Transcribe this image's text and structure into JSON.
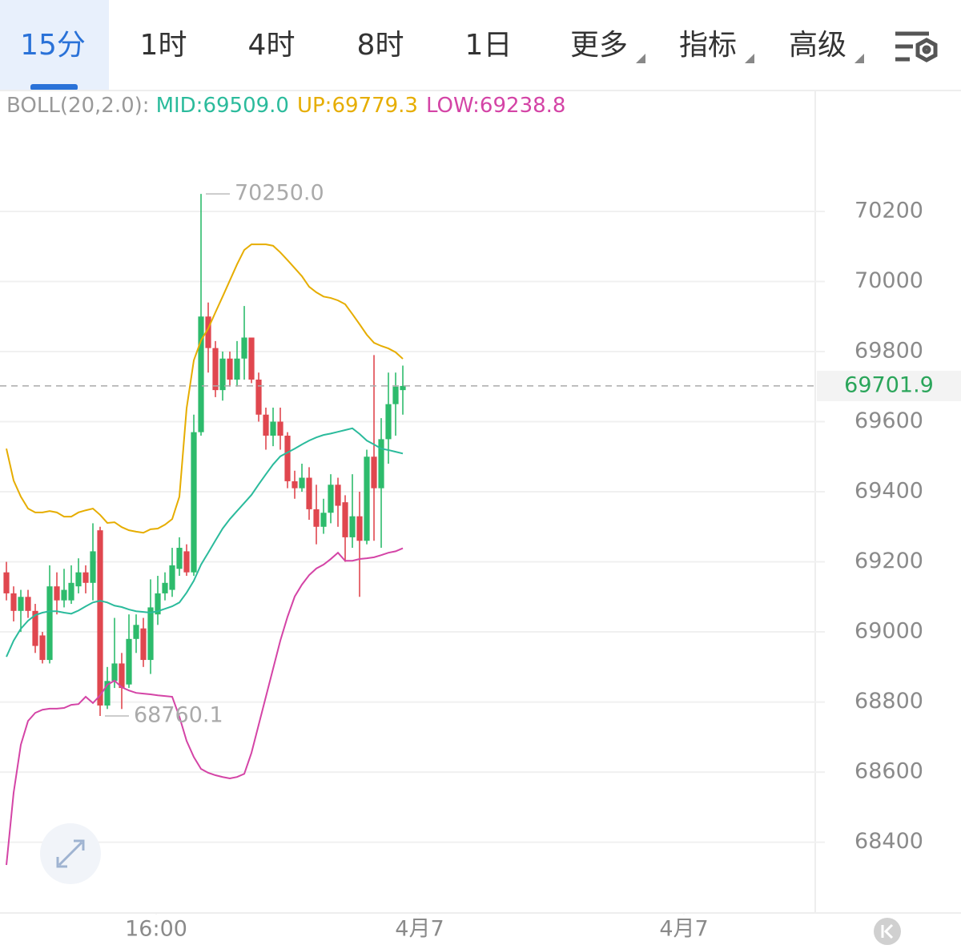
{
  "ui": {
    "tabs": [
      "15分",
      "1时",
      "4时",
      "8时",
      "1日",
      "更多",
      "指标",
      "高级"
    ]
  },
  "chart_data": {
    "type": "candlestick",
    "indicator": "BOLL(20,2.0):",
    "x": [
      0,
      1,
      2,
      3,
      4,
      5,
      6,
      7,
      8,
      9,
      10,
      11,
      12,
      13,
      14,
      15,
      16,
      17,
      18,
      19,
      20,
      21,
      22,
      23,
      24,
      25,
      26,
      27,
      28,
      29,
      30,
      31,
      32,
      33,
      34,
      35,
      36,
      37,
      38,
      39,
      40,
      41,
      42,
      43,
      44,
      45,
      46,
      47,
      48,
      49,
      50,
      51,
      52,
      53,
      54,
      55
    ],
    "open": [
      69170,
      69110,
      69060,
      69100,
      69060,
      68990,
      68920,
      69130,
      69090,
      69090,
      69130,
      69170,
      69140,
      69290,
      68790,
      68860,
      68910,
      68850,
      68980,
      69010,
      68920,
      69050,
      69110,
      69120,
      69180,
      69230,
      69170,
      69570,
      69900,
      69810,
      69690,
      69780,
      69720,
      69780,
      69840,
      69720,
      69620,
      69560,
      69600,
      69560,
      69430,
      69410,
      69440,
      69350,
      69300,
      69340,
      69420,
      69370,
      69270,
      69330,
      69260,
      69500,
      69410,
      69550,
      69650,
      69690
    ],
    "high": [
      69200,
      69130,
      69120,
      69120,
      69080,
      69000,
      69190,
      69170,
      69180,
      69190,
      69210,
      69190,
      69310,
      69300,
      68900,
      69040,
      68940,
      69050,
      69050,
      69040,
      69150,
      69160,
      69170,
      69240,
      69270,
      69250,
      69620,
      70250,
      69940,
      69830,
      69800,
      69800,
      69830,
      69930,
      69840,
      69740,
      69640,
      69640,
      69640,
      69570,
      69460,
      69480,
      69470,
      69420,
      69380,
      69450,
      69440,
      69390,
      69450,
      69400,
      69520,
      69790,
      69610,
      69740,
      69740,
      69760
    ],
    "low": [
      69090,
      69030,
      69000,
      69040,
      68940,
      68910,
      68910,
      69050,
      69070,
      69080,
      69110,
      69110,
      69090,
      68760.1,
      68780,
      68840,
      68780,
      68840,
      68940,
      68900,
      68880,
      69020,
      69090,
      69100,
      69160,
      69160,
      69160,
      69560,
      69740,
      69670,
      69660,
      69700,
      69700,
      69720,
      69710,
      69600,
      69520,
      69530,
      69520,
      69410,
      69380,
      69400,
      69320,
      69250,
      69280,
      69310,
      69300,
      69200,
      69240,
      69100,
      69250,
      69260,
      69240,
      69480,
      69560,
      69620
    ],
    "close": [
      69110,
      69060,
      69100,
      69060,
      68960,
      68920,
      69130,
      69090,
      69120,
      69140,
      69170,
      69140,
      69230,
      68790,
      68860,
      68910,
      68840,
      68980,
      69020,
      68920,
      69070,
      69110,
      69140,
      69190,
      69240,
      69170,
      69570,
      69900,
      69810,
      69690,
      69780,
      69720,
      69780,
      69840,
      69720,
      69620,
      69560,
      69600,
      69560,
      69430,
      69410,
      69440,
      69350,
      69300,
      69340,
      69420,
      69360,
      69270,
      69330,
      69260,
      69500,
      69410,
      69550,
      69650,
      69700,
      69701.9
    ],
    "up_color": "#2dbb6c",
    "down_color": "#e0474f",
    "series": [
      {
        "name": "MID:69509.0",
        "color": "#2bbb9c",
        "values": [
          68929,
          68975,
          69009,
          69032,
          69048,
          69055,
          69059,
          69059,
          69055,
          69052,
          69061,
          69073,
          69084,
          69089,
          69084,
          69075,
          69071,
          69064,
          69059,
          69057,
          69055,
          69059,
          69066,
          69073,
          69084,
          69112,
          69146,
          69192,
          69226,
          69261,
          69295,
          69322,
          69345,
          69368,
          69391,
          69421,
          69450,
          69478,
          69501,
          69512,
          69523,
          69535,
          69546,
          69555,
          69562,
          69566,
          69571,
          69576,
          69581,
          69565,
          69546,
          69535,
          69523,
          69519,
          69514,
          69509
        ]
      },
      {
        "name": "UP:69779.3",
        "color": "#e6ad00",
        "values": [
          69523,
          69432,
          69386,
          69352,
          69341,
          69341,
          69345,
          69341,
          69329,
          69329,
          69341,
          69347,
          69352,
          69334,
          69311,
          69313,
          69299,
          69290,
          69286,
          69283,
          69293,
          69295,
          69306,
          69322,
          69386,
          69638,
          69775,
          69832,
          69866,
          69912,
          69957,
          70003,
          70049,
          70090,
          70106,
          70106,
          70106,
          70102,
          70083,
          70061,
          70038,
          70015,
          69985,
          69969,
          69957,
          69953,
          69946,
          69935,
          69907,
          69878,
          69848,
          69825,
          69816,
          69809,
          69798,
          69779.3
        ]
      },
      {
        "name": "LOW:69238.8",
        "color": "#d444a6",
        "values": [
          68335,
          68541,
          68678,
          68746,
          68769,
          68778,
          68781,
          68781,
          68783,
          68792,
          68794,
          68815,
          68797,
          68819,
          68849,
          68861,
          68842,
          68833,
          68826,
          68824,
          68822,
          68819,
          68817,
          68815,
          68758,
          68689,
          68643,
          68609,
          68598,
          68591,
          68586,
          68582,
          68586,
          68595,
          68655,
          68735,
          68815,
          68895,
          68975,
          69043,
          69101,
          69135,
          69162,
          69181,
          69192,
          69208,
          69226,
          69203,
          69203,
          69208,
          69210,
          69213,
          69219,
          69226,
          69230,
          69238.8
        ]
      }
    ],
    "annotations": [
      {
        "x": 27,
        "value": 70250,
        "label": "70250.0"
      },
      {
        "x": 13,
        "value": 68760.1,
        "label": "68760.1"
      }
    ],
    "current_price": 69701.9,
    "xlim": [
      -0.89,
      112.22
    ],
    "xticks": [
      {
        "value": 20.78,
        "label": "16:00"
      },
      {
        "value": 57.33,
        "label": "4月7"
      },
      {
        "value": 94.0,
        "label": "4月7"
      }
    ],
    "ylim": [
      68198,
      70545
    ],
    "yticks": [
      68400,
      68600,
      68800,
      69000,
      69200,
      69400,
      69600,
      69800,
      70000,
      70200
    ],
    "grid": true
  }
}
